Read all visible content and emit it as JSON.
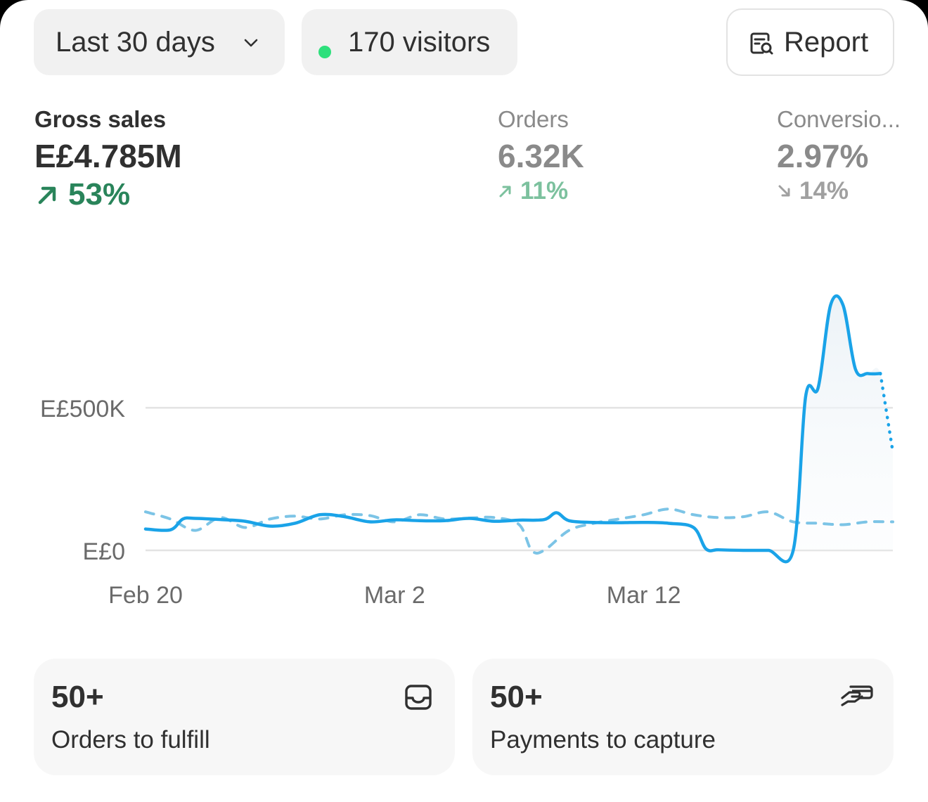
{
  "filters": {
    "date_range": "Last 30 days",
    "visitors": "170 visitors",
    "report_label": "Report"
  },
  "metrics": {
    "gross_sales": {
      "label": "Gross sales",
      "value": "E£4.785M",
      "delta": "53%",
      "direction": "up"
    },
    "orders": {
      "label": "Orders",
      "value": "6.32K",
      "delta": "11%",
      "direction": "up"
    },
    "conversion": {
      "label": "Conversio...",
      "value": "2.97%",
      "delta": "14%",
      "direction": "down"
    }
  },
  "colors": {
    "accent": "#1aa3e8",
    "positive": "#29845a",
    "positive_muted": "#7cc19e",
    "muted": "#8a8a8a",
    "live_dot": "#2ee07c"
  },
  "chart_data": {
    "type": "line",
    "title": "",
    "ylabel": "",
    "y_ticks": [
      "E£0",
      "E£500K"
    ],
    "x_ticks": [
      {
        "day": 0,
        "label": "Feb 20"
      },
      {
        "day": 10,
        "label": "Mar 2"
      },
      {
        "day": 20,
        "label": "Mar 12"
      }
    ],
    "ylim": [
      0,
      870000
    ],
    "xlim": [
      0,
      30
    ],
    "grid": true,
    "series": [
      {
        "style": "solid",
        "color": "#1aa3e8",
        "x": [
          0,
          1,
          1.5,
          2,
          3,
          4,
          5,
          6,
          7,
          8,
          9,
          10,
          11,
          12,
          13,
          14,
          15,
          16,
          16.5,
          17,
          18,
          19,
          20,
          21,
          22,
          22.5,
          23,
          24,
          25,
          26,
          26.5,
          27,
          27.5,
          28,
          28.5,
          29,
          29.5
        ],
        "y": [
          75000,
          72000,
          110000,
          112000,
          108000,
          102000,
          85000,
          95000,
          125000,
          118000,
          100000,
          107000,
          104000,
          104000,
          112000,
          102000,
          106000,
          108000,
          132000,
          104000,
          98000,
          97000,
          98000,
          95000,
          80000,
          5000,
          2000,
          0,
          0,
          0,
          540000,
          570000,
          860000,
          860000,
          635000,
          620000,
          620000
        ]
      },
      {
        "style": "dotted",
        "color": "#1aa3e8",
        "x": [
          29.5,
          30
        ],
        "y": [
          620000,
          345000
        ]
      },
      {
        "style": "dashed",
        "color": "#7cc4e6",
        "x": [
          0,
          1,
          2,
          3,
          4,
          5,
          6,
          7,
          8,
          9,
          10,
          11,
          12,
          13,
          14,
          15,
          15.5,
          16,
          17,
          18,
          19,
          20,
          21,
          22,
          23,
          24,
          25,
          26,
          27,
          28,
          29,
          30
        ],
        "y": [
          135000,
          110000,
          70000,
          115000,
          80000,
          110000,
          120000,
          110000,
          125000,
          122000,
          100000,
          125000,
          110000,
          113000,
          115000,
          90000,
          0,
          0,
          70000,
          95000,
          110000,
          125000,
          145000,
          125000,
          115000,
          118000,
          135000,
          100000,
          95000,
          90000,
          100000,
          100000
        ]
      }
    ]
  },
  "tiles": [
    {
      "count": "50+",
      "label": "Orders to fulfill",
      "icon": "inbox-icon"
    },
    {
      "count": "50+",
      "label": "Payments to capture",
      "icon": "hand-card-icon"
    }
  ]
}
